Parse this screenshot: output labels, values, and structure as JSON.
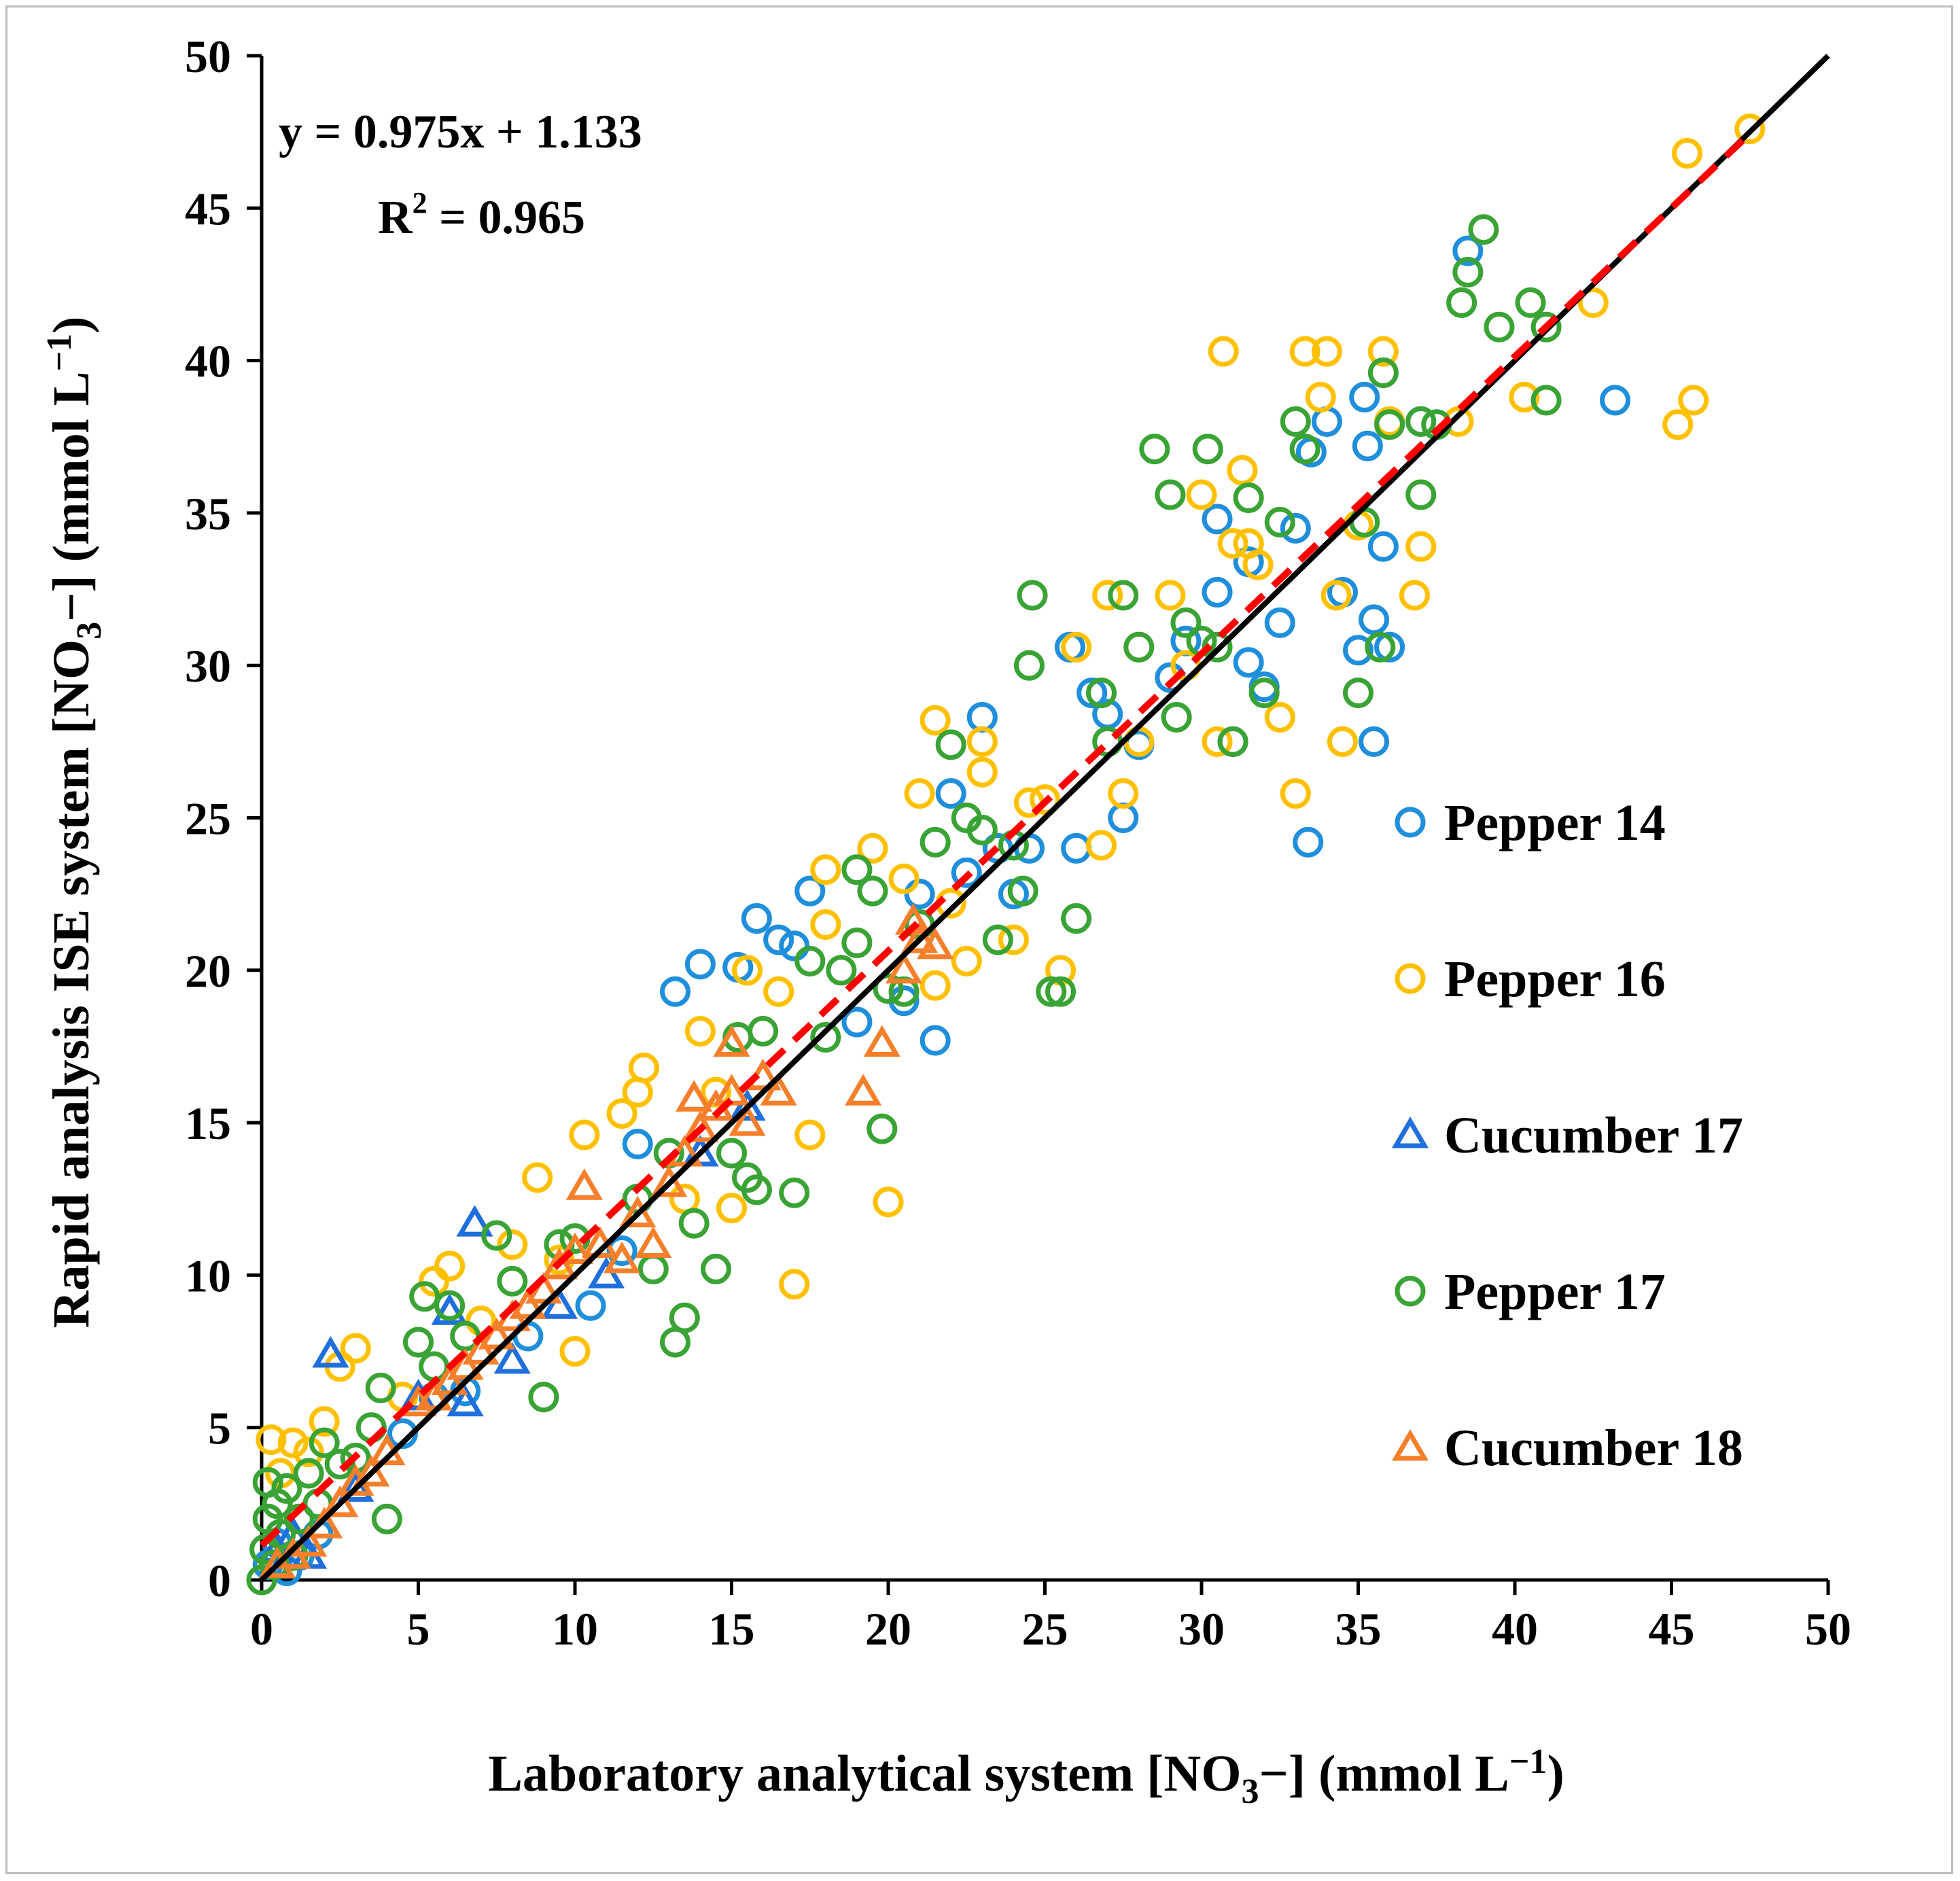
{
  "chart_data": {
    "type": "scatter",
    "title": "",
    "xlabel": {
      "pre": "Laboratory analytical system [NO",
      "sub": "3",
      "post": "−] (mmol L",
      "sup": "−1",
      "end": ")"
    },
    "ylabel": {
      "pre": "Rapid analysis ISE system [NO",
      "sub": "3",
      "post": "−] (mmol L",
      "sup": "−1",
      "end": ")"
    },
    "xlim": [
      0,
      50
    ],
    "ylim": [
      0,
      50
    ],
    "xticks": [
      0,
      5,
      10,
      15,
      20,
      25,
      30,
      35,
      40,
      45,
      50
    ],
    "yticks": [
      0,
      5,
      10,
      15,
      20,
      25,
      30,
      35,
      40,
      45,
      50
    ],
    "grid": false,
    "legend_position": "right",
    "annotations": {
      "equation": "y = 0.975x + 1.133",
      "r2_label": "R",
      "r2_sup": "2",
      "r2_value": " = 0.965"
    },
    "reference_line": {
      "name": "1:1 line",
      "slope": 1,
      "intercept": 0,
      "color": "#000000"
    },
    "fit_line": {
      "name": "regression",
      "slope": 0.975,
      "intercept": 1.133,
      "x_range": [
        0,
        47.5
      ],
      "color": "#ff0000"
    },
    "series": [
      {
        "name": "Pepper 14",
        "marker": "circle",
        "color": "#1f8fdc",
        "points": [
          [
            0.2,
            0.5
          ],
          [
            0.5,
            1.2
          ],
          [
            0.8,
            0.3
          ],
          [
            1.2,
            0.8
          ],
          [
            1.8,
            1.5
          ],
          [
            4.5,
            4.8
          ],
          [
            5.5,
            6.0
          ],
          [
            6.5,
            6.2
          ],
          [
            8.5,
            8.0
          ],
          [
            10.5,
            9.0
          ],
          [
            11.5,
            10.8
          ],
          [
            12.0,
            14.3
          ],
          [
            13.2,
            19.3
          ],
          [
            14.0,
            20.2
          ],
          [
            15.2,
            20.1
          ],
          [
            15.8,
            21.7
          ],
          [
            16.5,
            21.0
          ],
          [
            17.0,
            20.8
          ],
          [
            17.5,
            22.6
          ],
          [
            19.0,
            18.3
          ],
          [
            20.5,
            19.0
          ],
          [
            21.0,
            22.5
          ],
          [
            21.5,
            17.7
          ],
          [
            22.0,
            25.8
          ],
          [
            22.5,
            23.2
          ],
          [
            23.0,
            28.3
          ],
          [
            23.5,
            24.0
          ],
          [
            24.0,
            22.5
          ],
          [
            24.5,
            24.0
          ],
          [
            25.8,
            30.6
          ],
          [
            26.0,
            24.0
          ],
          [
            26.5,
            29.1
          ],
          [
            27.0,
            28.4
          ],
          [
            27.5,
            25.0
          ],
          [
            28.0,
            27.4
          ],
          [
            29.0,
            29.6
          ],
          [
            29.5,
            30.8
          ],
          [
            30.5,
            32.4
          ],
          [
            30.5,
            34.8
          ],
          [
            31.0,
            27.5
          ],
          [
            31.5,
            33.4
          ],
          [
            31.5,
            30.1
          ],
          [
            32.0,
            29.3
          ],
          [
            32.5,
            31.4
          ],
          [
            33.0,
            34.5
          ],
          [
            33.4,
            24.2
          ],
          [
            33.5,
            37.0
          ],
          [
            34.0,
            38.0
          ],
          [
            34.5,
            32.4
          ],
          [
            35.0,
            30.5
          ],
          [
            35.2,
            38.8
          ],
          [
            35.3,
            37.2
          ],
          [
            35.5,
            31.5
          ],
          [
            35.5,
            27.5
          ],
          [
            35.8,
            33.9
          ],
          [
            36.0,
            30.6
          ],
          [
            37.0,
            38.0
          ],
          [
            38.5,
            43.6
          ],
          [
            43.2,
            38.7
          ]
        ]
      },
      {
        "name": "Pepper 16",
        "marker": "circle",
        "color": "#ffc000",
        "points": [
          [
            0.3,
            4.6
          ],
          [
            0.6,
            3.5
          ],
          [
            1.0,
            4.5
          ],
          [
            1.5,
            4.2
          ],
          [
            2.0,
            5.2
          ],
          [
            2.5,
            7.0
          ],
          [
            3.0,
            7.6
          ],
          [
            4.5,
            6.0
          ],
          [
            5.5,
            9.8
          ],
          [
            6.0,
            10.3
          ],
          [
            7.0,
            8.5
          ],
          [
            8.0,
            11.0
          ],
          [
            8.8,
            13.2
          ],
          [
            9.5,
            10.5
          ],
          [
            10.0,
            7.5
          ],
          [
            10.3,
            14.6
          ],
          [
            11.5,
            15.3
          ],
          [
            12.0,
            16.0
          ],
          [
            12.2,
            16.8
          ],
          [
            13.5,
            12.5
          ],
          [
            14.0,
            18.0
          ],
          [
            14.5,
            16.0
          ],
          [
            15.0,
            12.2
          ],
          [
            15.5,
            20.0
          ],
          [
            16.5,
            19.3
          ],
          [
            17.0,
            9.7
          ],
          [
            17.5,
            14.6
          ],
          [
            18.0,
            21.5
          ],
          [
            18.0,
            23.3
          ],
          [
            19.5,
            24.0
          ],
          [
            20.0,
            12.4
          ],
          [
            20.5,
            23.0
          ],
          [
            21.0,
            25.8
          ],
          [
            21.5,
            19.5
          ],
          [
            21.5,
            28.2
          ],
          [
            22.0,
            22.2
          ],
          [
            22.5,
            20.3
          ],
          [
            23.0,
            27.5
          ],
          [
            23.0,
            26.5
          ],
          [
            24.0,
            21.0
          ],
          [
            24.5,
            25.5
          ],
          [
            25.0,
            25.6
          ],
          [
            25.5,
            20.0
          ],
          [
            26.0,
            30.6
          ],
          [
            26.8,
            24.1
          ],
          [
            27.0,
            32.3
          ],
          [
            27.5,
            25.8
          ],
          [
            28.0,
            30.6
          ],
          [
            28.0,
            27.5
          ],
          [
            29.0,
            32.3
          ],
          [
            29.5,
            30.0
          ],
          [
            30.0,
            35.6
          ],
          [
            30.5,
            27.5
          ],
          [
            30.7,
            40.3
          ],
          [
            31.0,
            34.0
          ],
          [
            31.3,
            36.4
          ],
          [
            31.5,
            34.0
          ],
          [
            31.8,
            33.3
          ],
          [
            32.5,
            28.3
          ],
          [
            33.0,
            25.8
          ],
          [
            33.3,
            40.3
          ],
          [
            33.8,
            38.8
          ],
          [
            34.0,
            40.3
          ],
          [
            34.3,
            32.3
          ],
          [
            34.5,
            27.5
          ],
          [
            35.0,
            34.6
          ],
          [
            35.8,
            40.3
          ],
          [
            36.0,
            38.0
          ],
          [
            36.8,
            32.3
          ],
          [
            37.0,
            33.9
          ],
          [
            38.2,
            38.0
          ],
          [
            40.3,
            38.8
          ],
          [
            42.5,
            41.9
          ],
          [
            45.2,
            37.9
          ],
          [
            45.7,
            38.7
          ],
          [
            45.5,
            46.8
          ],
          [
            47.5,
            47.6
          ]
        ]
      },
      {
        "name": "Cucumber 17",
        "marker": "triangle",
        "color": "#1f6fdc",
        "points": [
          [
            0.5,
            1.0
          ],
          [
            1.0,
            1.5
          ],
          [
            1.5,
            0.8
          ],
          [
            2.2,
            7.4
          ],
          [
            3.0,
            3.0
          ],
          [
            5.0,
            6.0
          ],
          [
            6.0,
            8.8
          ],
          [
            6.5,
            5.8
          ],
          [
            6.8,
            11.7
          ],
          [
            8.0,
            7.2
          ],
          [
            9.5,
            9.0
          ],
          [
            11.0,
            10.0
          ],
          [
            14.0,
            14.0
          ],
          [
            15.5,
            15.5
          ]
        ]
      },
      {
        "name": "Pepper 17",
        "marker": "circle",
        "color": "#3aa335",
        "points": [
          [
            0.0,
            0.0
          ],
          [
            0.1,
            1.0
          ],
          [
            0.2,
            2.0
          ],
          [
            0.2,
            3.2
          ],
          [
            0.4,
            0.5
          ],
          [
            0.5,
            2.5
          ],
          [
            0.6,
            1.5
          ],
          [
            0.8,
            3.0
          ],
          [
            1.0,
            0.8
          ],
          [
            1.2,
            2.0
          ],
          [
            1.5,
            3.5
          ],
          [
            1.8,
            2.5
          ],
          [
            2.0,
            4.5
          ],
          [
            2.5,
            3.8
          ],
          [
            3.0,
            4.0
          ],
          [
            3.5,
            5.0
          ],
          [
            3.8,
            6.3
          ],
          [
            4.0,
            2.0
          ],
          [
            5.0,
            7.8
          ],
          [
            5.2,
            9.3
          ],
          [
            5.5,
            7.0
          ],
          [
            6.0,
            9.0
          ],
          [
            6.5,
            8.0
          ],
          [
            7.5,
            11.3
          ],
          [
            8.0,
            9.8
          ],
          [
            9.0,
            6.0
          ],
          [
            9.5,
            11.0
          ],
          [
            10.0,
            11.2
          ],
          [
            12.0,
            12.5
          ],
          [
            12.5,
            10.2
          ],
          [
            13.0,
            14.0
          ],
          [
            13.2,
            7.8
          ],
          [
            13.5,
            8.6
          ],
          [
            13.8,
            11.7
          ],
          [
            14.5,
            10.2
          ],
          [
            15.0,
            14.0
          ],
          [
            15.2,
            17.8
          ],
          [
            15.5,
            13.2
          ],
          [
            15.8,
            12.8
          ],
          [
            16.0,
            18.0
          ],
          [
            17.0,
            12.7
          ],
          [
            17.5,
            20.3
          ],
          [
            18.0,
            17.8
          ],
          [
            18.5,
            20.0
          ],
          [
            19.0,
            23.3
          ],
          [
            19.0,
            20.9
          ],
          [
            19.5,
            22.6
          ],
          [
            19.8,
            14.8
          ],
          [
            20.0,
            19.4
          ],
          [
            20.5,
            19.3
          ],
          [
            21.0,
            21.5
          ],
          [
            21.5,
            24.2
          ],
          [
            22.0,
            27.4
          ],
          [
            22.5,
            25.0
          ],
          [
            23.0,
            24.6
          ],
          [
            23.5,
            21.0
          ],
          [
            24.0,
            24.1
          ],
          [
            24.3,
            22.6
          ],
          [
            24.5,
            30.0
          ],
          [
            24.6,
            32.3
          ],
          [
            25.2,
            19.3
          ],
          [
            25.5,
            19.3
          ],
          [
            26.0,
            21.7
          ],
          [
            26.8,
            29.1
          ],
          [
            27.0,
            27.5
          ],
          [
            27.5,
            32.3
          ],
          [
            28.0,
            30.6
          ],
          [
            28.5,
            37.1
          ],
          [
            29.0,
            35.6
          ],
          [
            29.2,
            28.3
          ],
          [
            29.5,
            31.4
          ],
          [
            30.0,
            30.8
          ],
          [
            30.2,
            37.1
          ],
          [
            30.5,
            30.6
          ],
          [
            31.0,
            27.5
          ],
          [
            31.5,
            35.5
          ],
          [
            32.0,
            29.1
          ],
          [
            32.5,
            34.7
          ],
          [
            33.0,
            38.0
          ],
          [
            33.3,
            37.1
          ],
          [
            35.0,
            29.1
          ],
          [
            35.2,
            34.7
          ],
          [
            35.7,
            30.6
          ],
          [
            35.8,
            39.6
          ],
          [
            36.0,
            37.9
          ],
          [
            37.0,
            38.0
          ],
          [
            37.0,
            35.6
          ],
          [
            37.5,
            37.9
          ],
          [
            38.3,
            41.9
          ],
          [
            38.5,
            42.9
          ],
          [
            39.0,
            44.3
          ],
          [
            39.5,
            41.1
          ],
          [
            40.5,
            41.9
          ],
          [
            41.0,
            38.7
          ],
          [
            41.0,
            41.1
          ]
        ]
      },
      {
        "name": "Cucumber 18",
        "marker": "triangle",
        "color": "#f57f2a",
        "points": [
          [
            0.5,
            0.5
          ],
          [
            1.0,
            0.8
          ],
          [
            1.5,
            1.2
          ],
          [
            2.0,
            1.8
          ],
          [
            2.5,
            2.5
          ],
          [
            3.0,
            3.2
          ],
          [
            3.5,
            3.5
          ],
          [
            4.0,
            4.2
          ],
          [
            5.0,
            5.8
          ],
          [
            5.5,
            6.0
          ],
          [
            6.0,
            6.5
          ],
          [
            6.5,
            7.0
          ],
          [
            7.0,
            7.5
          ],
          [
            7.5,
            8.0
          ],
          [
            8.0,
            8.6
          ],
          [
            8.5,
            9.0
          ],
          [
            9.0,
            9.5
          ],
          [
            9.5,
            10.3
          ],
          [
            10.0,
            10.8
          ],
          [
            10.3,
            12.9
          ],
          [
            10.8,
            11.0
          ],
          [
            11.5,
            10.5
          ],
          [
            12.0,
            12.0
          ],
          [
            12.5,
            11.0
          ],
          [
            13.0,
            13.0
          ],
          [
            13.5,
            14.0
          ],
          [
            13.8,
            15.8
          ],
          [
            14.0,
            14.8
          ],
          [
            14.5,
            15.5
          ],
          [
            15.0,
            16.0
          ],
          [
            15.0,
            17.6
          ],
          [
            15.5,
            15.0
          ],
          [
            16.0,
            16.5
          ],
          [
            16.5,
            16.0
          ],
          [
            19.2,
            16.0
          ],
          [
            19.8,
            17.6
          ],
          [
            20.5,
            20.0
          ],
          [
            20.8,
            21.6
          ],
          [
            21.0,
            21.0
          ],
          [
            21.5,
            20.8
          ]
        ]
      }
    ]
  }
}
